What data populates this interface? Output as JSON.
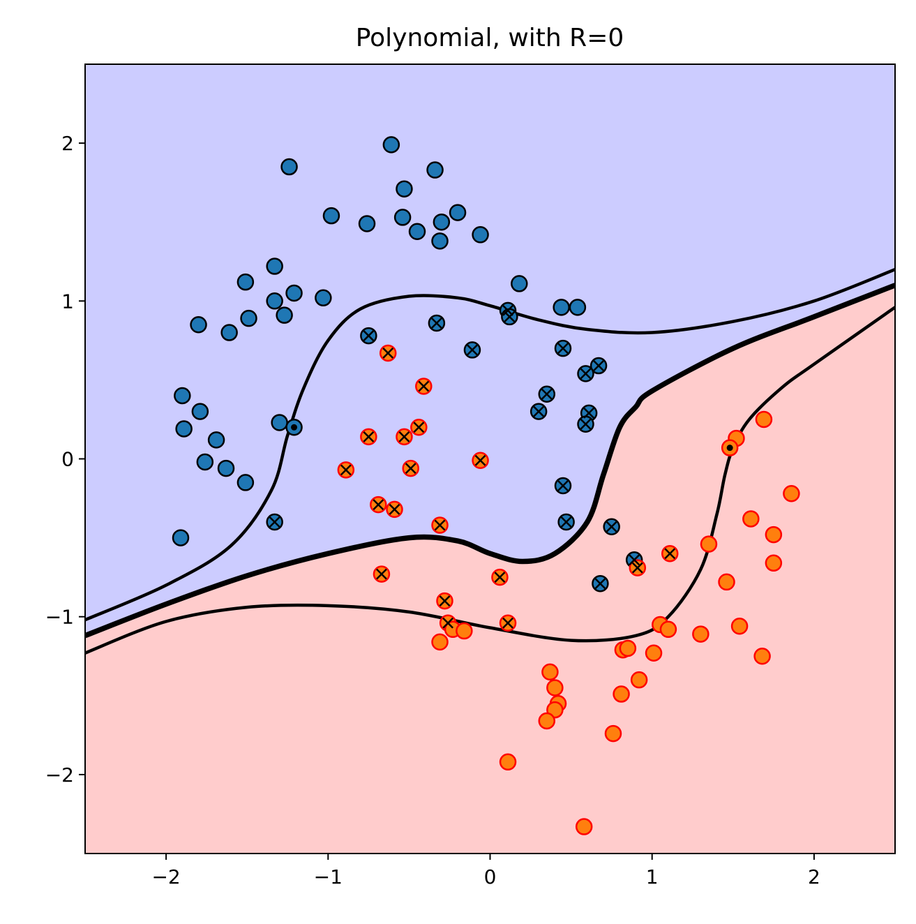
{
  "chart_data": {
    "type": "scatter",
    "title": "Polynomial, with R=0",
    "xlabel": "",
    "ylabel": "",
    "xlim": [
      -2.5,
      2.5
    ],
    "ylim": [
      -2.5,
      2.5
    ],
    "xticks": [
      -2,
      -1,
      0,
      1,
      2
    ],
    "yticks": [
      -2,
      -1,
      0,
      1,
      2
    ],
    "xtick_labels": [
      "−2",
      "−1",
      "0",
      "1",
      "2"
    ],
    "ytick_labels": [
      "−2",
      "−1",
      "0",
      "1",
      "2"
    ],
    "grid": false,
    "legend": "none",
    "regions": [
      {
        "name": "class 0 region",
        "color": "#ccccff",
        "position": "upper-left"
      },
      {
        "name": "class 1 region",
        "color": "#ffcccc",
        "position": "lower-right"
      }
    ],
    "colors": {
      "class0_fill": "#1f77b4",
      "class0_edge": "#000000",
      "class1_fill": "#ff7f0e",
      "class1_edge": "#ff0000",
      "boundary": "#000000",
      "support_vector_marker": "#000000"
    },
    "boundaries": {
      "decision": [
        [
          -2.5,
          -1.12
        ],
        [
          -2.0,
          -0.92
        ],
        [
          -1.5,
          -0.74
        ],
        [
          -1.0,
          -0.6
        ],
        [
          -0.5,
          -0.5
        ],
        [
          -0.2,
          -0.52
        ],
        [
          0.0,
          -0.6
        ],
        [
          0.2,
          -0.65
        ],
        [
          0.4,
          -0.6
        ],
        [
          0.6,
          -0.4
        ],
        [
          0.7,
          -0.1
        ],
        [
          0.8,
          0.2
        ],
        [
          0.9,
          0.33
        ],
        [
          1.0,
          0.43
        ],
        [
          1.5,
          0.7
        ],
        [
          2.0,
          0.9
        ],
        [
          2.5,
          1.1
        ]
      ],
      "upper_margin": [
        [
          -2.5,
          -1.02
        ],
        [
          -2.0,
          -0.8
        ],
        [
          -1.6,
          -0.55
        ],
        [
          -1.35,
          -0.2
        ],
        [
          -1.25,
          0.15
        ],
        [
          -1.15,
          0.45
        ],
        [
          -1.0,
          0.75
        ],
        [
          -0.8,
          0.95
        ],
        [
          -0.5,
          1.03
        ],
        [
          -0.2,
          1.02
        ],
        [
          0.0,
          0.97
        ],
        [
          0.3,
          0.88
        ],
        [
          0.6,
          0.82
        ],
        [
          1.0,
          0.8
        ],
        [
          1.5,
          0.87
        ],
        [
          2.0,
          1.0
        ],
        [
          2.5,
          1.2
        ]
      ],
      "lower_margin": [
        [
          -2.5,
          -1.23
        ],
        [
          -2.0,
          -1.03
        ],
        [
          -1.5,
          -0.94
        ],
        [
          -1.0,
          -0.93
        ],
        [
          -0.5,
          -0.97
        ],
        [
          0.0,
          -1.07
        ],
        [
          0.5,
          -1.15
        ],
        [
          0.9,
          -1.12
        ],
        [
          1.1,
          -1.0
        ],
        [
          1.3,
          -0.7
        ],
        [
          1.4,
          -0.35
        ],
        [
          1.45,
          -0.1
        ],
        [
          1.5,
          0.07
        ],
        [
          1.6,
          0.25
        ],
        [
          1.8,
          0.45
        ],
        [
          2.0,
          0.6
        ],
        [
          2.5,
          0.96
        ]
      ]
    },
    "series": [
      {
        "class": 0,
        "points": [
          [
            -1.24,
            1.85
          ],
          [
            -0.61,
            1.99
          ],
          [
            -0.34,
            1.83
          ],
          [
            -0.53,
            1.71
          ],
          [
            -0.98,
            1.54
          ],
          [
            -0.76,
            1.49
          ],
          [
            -0.54,
            1.53
          ],
          [
            -0.45,
            1.44
          ],
          [
            -0.3,
            1.5
          ],
          [
            -0.31,
            1.38
          ],
          [
            -0.2,
            1.56
          ],
          [
            -0.06,
            1.42
          ],
          [
            -1.33,
            1.22
          ],
          [
            -1.51,
            1.12
          ],
          [
            -1.33,
            1.0
          ],
          [
            -1.21,
            1.05
          ],
          [
            -1.27,
            0.91
          ],
          [
            -1.49,
            0.89
          ],
          [
            -1.61,
            0.8
          ],
          [
            -1.8,
            0.85
          ],
          [
            -1.03,
            1.02
          ],
          [
            0.18,
            1.11
          ],
          [
            0.44,
            0.96
          ],
          [
            0.54,
            0.96
          ],
          [
            -1.9,
            0.4
          ],
          [
            -1.79,
            0.3
          ],
          [
            -1.89,
            0.19
          ],
          [
            -1.69,
            0.12
          ],
          [
            -1.76,
            -0.02
          ],
          [
            -1.63,
            -0.06
          ],
          [
            -1.51,
            -0.15
          ],
          [
            -1.91,
            -0.5
          ],
          [
            -1.3,
            0.23
          ],
          [
            -0.75,
            0.78
          ],
          [
            -0.33,
            0.86
          ],
          [
            0.11,
            0.94
          ],
          [
            0.12,
            0.9
          ],
          [
            -0.11,
            0.69
          ],
          [
            0.45,
            0.7
          ],
          [
            0.67,
            0.59
          ],
          [
            0.59,
            0.54
          ],
          [
            0.35,
            0.41
          ],
          [
            0.3,
            0.3
          ],
          [
            0.61,
            0.29
          ],
          [
            0.59,
            0.22
          ],
          [
            0.45,
            -0.17
          ],
          [
            0.47,
            -0.4
          ],
          [
            0.75,
            -0.43
          ],
          [
            0.89,
            -0.64
          ],
          [
            0.68,
            -0.79
          ],
          [
            -1.33,
            -0.4
          ],
          [
            -1.21,
            0.2
          ]
        ]
      },
      {
        "class": 1,
        "points": [
          [
            -0.63,
            0.67
          ],
          [
            -0.41,
            0.46
          ],
          [
            -0.44,
            0.2
          ],
          [
            -0.75,
            0.14
          ],
          [
            -0.53,
            0.14
          ],
          [
            -0.06,
            -0.01
          ],
          [
            -0.89,
            -0.07
          ],
          [
            -0.49,
            -0.06
          ],
          [
            -0.69,
            -0.29
          ],
          [
            -0.59,
            -0.32
          ],
          [
            -0.31,
            -0.42
          ],
          [
            -0.67,
            -0.73
          ],
          [
            -0.28,
            -0.9
          ],
          [
            -0.26,
            -1.04
          ],
          [
            -0.23,
            -1.08
          ],
          [
            -0.16,
            -1.09
          ],
          [
            -0.31,
            -1.16
          ],
          [
            0.06,
            -0.75
          ],
          [
            0.11,
            -1.04
          ],
          [
            0.91,
            -0.69
          ],
          [
            1.11,
            -0.6
          ],
          [
            1.35,
            -0.54
          ],
          [
            1.46,
            -0.78
          ],
          [
            1.52,
            0.13
          ],
          [
            1.69,
            0.25
          ],
          [
            1.48,
            0.07
          ],
          [
            1.61,
            -0.38
          ],
          [
            1.75,
            -0.48
          ],
          [
            1.86,
            -0.22
          ],
          [
            1.75,
            -0.66
          ],
          [
            1.54,
            -1.06
          ],
          [
            1.3,
            -1.11
          ],
          [
            1.05,
            -1.05
          ],
          [
            1.1,
            -1.08
          ],
          [
            1.68,
            -1.25
          ],
          [
            0.82,
            -1.21
          ],
          [
            0.85,
            -1.2
          ],
          [
            1.01,
            -1.23
          ],
          [
            0.92,
            -1.4
          ],
          [
            0.81,
            -1.49
          ],
          [
            0.76,
            -1.74
          ],
          [
            0.37,
            -1.35
          ],
          [
            0.4,
            -1.45
          ],
          [
            0.42,
            -1.55
          ],
          [
            0.4,
            -1.59
          ],
          [
            0.35,
            -1.66
          ],
          [
            0.11,
            -1.92
          ],
          [
            0.58,
            -2.33
          ]
        ]
      }
    ],
    "support_vectors": [
      [
        -0.75,
        0.78
      ],
      [
        -0.33,
        0.86
      ],
      [
        0.11,
        0.94
      ],
      [
        0.12,
        0.9
      ],
      [
        -0.11,
        0.69
      ],
      [
        0.45,
        0.7
      ],
      [
        0.67,
        0.59
      ],
      [
        0.59,
        0.54
      ],
      [
        0.35,
        0.41
      ],
      [
        0.3,
        0.3
      ],
      [
        0.61,
        0.29
      ],
      [
        0.59,
        0.22
      ],
      [
        0.45,
        -0.17
      ],
      [
        0.47,
        -0.4
      ],
      [
        0.75,
        -0.43
      ],
      [
        0.89,
        -0.64
      ],
      [
        0.68,
        -0.79
      ],
      [
        -1.33,
        -0.4
      ],
      [
        -0.63,
        0.67
      ],
      [
        -0.41,
        0.46
      ],
      [
        -0.44,
        0.2
      ],
      [
        -0.75,
        0.14
      ],
      [
        -0.53,
        0.14
      ],
      [
        -0.06,
        -0.01
      ],
      [
        -0.89,
        -0.07
      ],
      [
        -0.49,
        -0.06
      ],
      [
        -0.69,
        -0.29
      ],
      [
        -0.59,
        -0.32
      ],
      [
        -0.31,
        -0.42
      ],
      [
        -0.67,
        -0.73
      ],
      [
        -0.28,
        -0.9
      ],
      [
        -0.26,
        -1.04
      ],
      [
        0.06,
        -0.75
      ],
      [
        0.11,
        -1.04
      ],
      [
        0.91,
        -0.69
      ],
      [
        1.11,
        -0.6
      ]
    ],
    "margin_points": [
      [
        -1.21,
        0.2
      ],
      [
        1.48,
        0.07
      ]
    ]
  }
}
